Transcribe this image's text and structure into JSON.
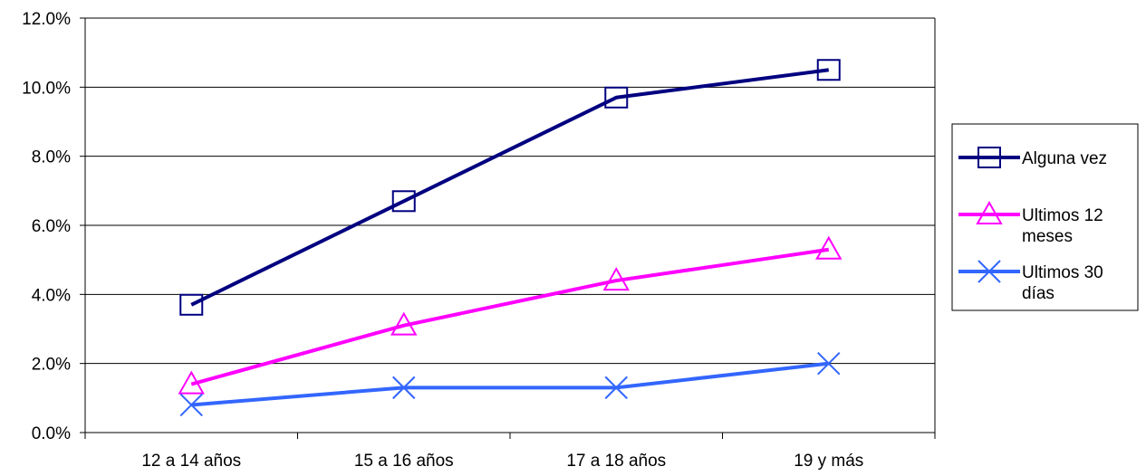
{
  "chart_data": {
    "type": "line",
    "title": "",
    "xlabel": "",
    "ylabel": "",
    "categories": [
      "12 a 14 años",
      "15 a 16 años",
      "17 a 18 años",
      "19 y más"
    ],
    "ylim": [
      0,
      12
    ],
    "yticks": [
      "0.0%",
      "2.0%",
      "4.0%",
      "6.0%",
      "8.0%",
      "10.0%",
      "12.0%"
    ],
    "grid": true,
    "legend_position": "right",
    "series": [
      {
        "name": "Alguna vez",
        "values": [
          3.7,
          6.7,
          9.7,
          10.5
        ],
        "color": "#000080",
        "marker": "square"
      },
      {
        "name": "Ultimos 12 meses",
        "values": [
          1.4,
          3.1,
          4.4,
          5.3
        ],
        "color": "#FF00FF",
        "marker": "triangle"
      },
      {
        "name": "Ultimos 30 días",
        "values": [
          0.8,
          1.3,
          1.3,
          2.0
        ],
        "color": "#3366FF",
        "marker": "x"
      }
    ]
  }
}
